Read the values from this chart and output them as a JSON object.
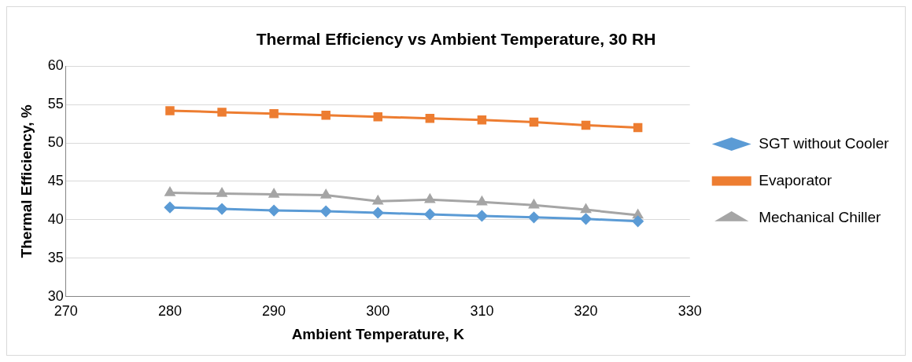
{
  "chart_data": {
    "type": "line",
    "title": "Thermal Efficiency vs Ambient Temperature, 30 RH",
    "xlabel": "Ambient Temperature, K",
    "ylabel": "Thermal Efficiency, %",
    "x": [
      280,
      285,
      290,
      295,
      300,
      305,
      310,
      315,
      320,
      325
    ],
    "series": [
      {
        "name": "SGT without Cooler",
        "color": "#5b9bd5",
        "marker": "diamond",
        "values": [
          41.6,
          41.4,
          41.2,
          41.1,
          40.9,
          40.7,
          40.5,
          40.3,
          40.1,
          39.8
        ]
      },
      {
        "name": "Evaporator",
        "color": "#ed7d31",
        "marker": "square",
        "values": [
          54.2,
          54.0,
          53.8,
          53.6,
          53.4,
          53.2,
          53.0,
          52.7,
          52.3,
          52.0
        ]
      },
      {
        "name": "Mechanical Chiller",
        "color": "#a5a5a5",
        "marker": "triangle",
        "values": [
          43.5,
          43.4,
          43.3,
          43.2,
          42.4,
          42.6,
          42.3,
          41.9,
          41.3,
          40.6
        ]
      }
    ],
    "xlim": [
      270,
      330
    ],
    "xticks": [
      270,
      280,
      290,
      300,
      310,
      320,
      330
    ],
    "ylim": [
      30,
      60
    ],
    "yticks": [
      30,
      35,
      40,
      45,
      50,
      55,
      60
    ],
    "grid": "y",
    "legend": "right"
  }
}
